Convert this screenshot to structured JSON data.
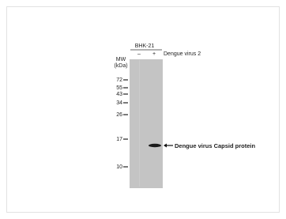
{
  "blot": {
    "cell_line": "BHK-21",
    "lanes": [
      "–",
      "+"
    ],
    "treatment": "Dengue virus 2",
    "mw_label": "MW",
    "mw_unit": "(kDa)",
    "markers": [
      "72",
      "55",
      "43",
      "34",
      "26",
      "17",
      "10"
    ],
    "band_label": "Dengue virus  Capsid protein"
  }
}
